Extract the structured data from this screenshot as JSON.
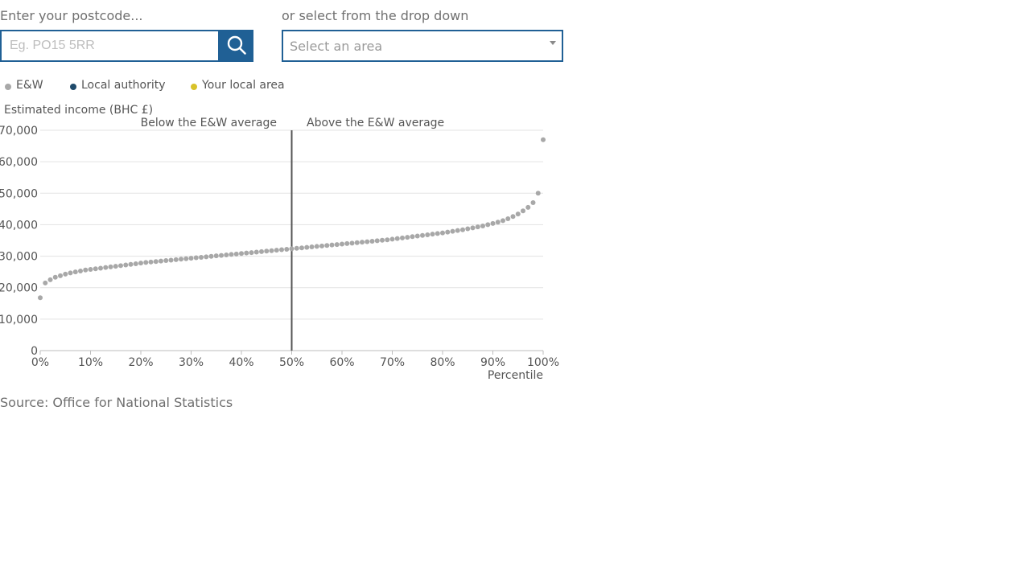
{
  "form": {
    "postcode_label": "Enter your postcode...",
    "postcode_placeholder": "Eg. PO15 5RR",
    "postcode_value": "",
    "search_icon": "search-icon",
    "select_label": "or select from the drop down",
    "select_placeholder": "Select an area"
  },
  "legend": [
    {
      "label": "E&W",
      "color": "#a8a8a8"
    },
    {
      "label": "Local authority",
      "color": "#1f4a6b"
    },
    {
      "label": "Your local area",
      "color": "#d8c22a"
    }
  ],
  "chart_data": {
    "type": "scatter",
    "title": "",
    "ylabel": "Estimated income (BHC £)",
    "xlabel": "Percentile",
    "ylim": [
      0,
      70000
    ],
    "xlim": [
      0,
      100
    ],
    "x_ticks": [
      "0%",
      "10%",
      "20%",
      "30%",
      "40%",
      "50%",
      "60%",
      "70%",
      "80%",
      "90%",
      "100%"
    ],
    "y_ticks": [
      "0",
      "10,000",
      "20,000",
      "30,000",
      "40,000",
      "50,000",
      "60,000",
      "70,000"
    ],
    "reference_line": {
      "x": 50,
      "label_left": "Below the E&W average",
      "label_right": "Above the E&W average"
    },
    "grid": true,
    "series": [
      {
        "name": "E&W",
        "color": "#a8a8a8",
        "x": [
          0,
          1,
          2,
          3,
          4,
          5,
          6,
          7,
          8,
          9,
          10,
          11,
          12,
          13,
          14,
          15,
          16,
          17,
          18,
          19,
          20,
          21,
          22,
          23,
          24,
          25,
          26,
          27,
          28,
          29,
          30,
          31,
          32,
          33,
          34,
          35,
          36,
          37,
          38,
          39,
          40,
          41,
          42,
          43,
          44,
          45,
          46,
          47,
          48,
          49,
          50,
          51,
          52,
          53,
          54,
          55,
          56,
          57,
          58,
          59,
          60,
          61,
          62,
          63,
          64,
          65,
          66,
          67,
          68,
          69,
          70,
          71,
          72,
          73,
          74,
          75,
          76,
          77,
          78,
          79,
          80,
          81,
          82,
          83,
          84,
          85,
          86,
          87,
          88,
          89,
          90,
          91,
          92,
          93,
          94,
          95,
          96,
          97,
          98,
          99,
          100
        ],
        "values": [
          16800,
          21500,
          22500,
          23300,
          23800,
          24300,
          24700,
          25000,
          25300,
          25600,
          25800,
          26000,
          26200,
          26400,
          26600,
          26800,
          27000,
          27200,
          27400,
          27600,
          27800,
          28000,
          28150,
          28300,
          28450,
          28600,
          28750,
          28900,
          29050,
          29200,
          29350,
          29500,
          29650,
          29800,
          29950,
          30100,
          30250,
          30400,
          30550,
          30700,
          30850,
          31000,
          31150,
          31300,
          31450,
          31600,
          31750,
          31900,
          32050,
          32200,
          32350,
          32500,
          32650,
          32800,
          32950,
          33100,
          33250,
          33400,
          33550,
          33700,
          33850,
          34000,
          34150,
          34300,
          34450,
          34600,
          34750,
          34900,
          35050,
          35200,
          35400,
          35600,
          35800,
          36000,
          36200,
          36400,
          36600,
          36800,
          37000,
          37200,
          37400,
          37650,
          37900,
          38150,
          38400,
          38700,
          39000,
          39300,
          39600,
          40000,
          40400,
          40800,
          41300,
          41900,
          42600,
          43400,
          44400,
          45500,
          47000,
          50000,
          67000
        ]
      }
    ]
  },
  "source": "Source: Office for National Statistics"
}
